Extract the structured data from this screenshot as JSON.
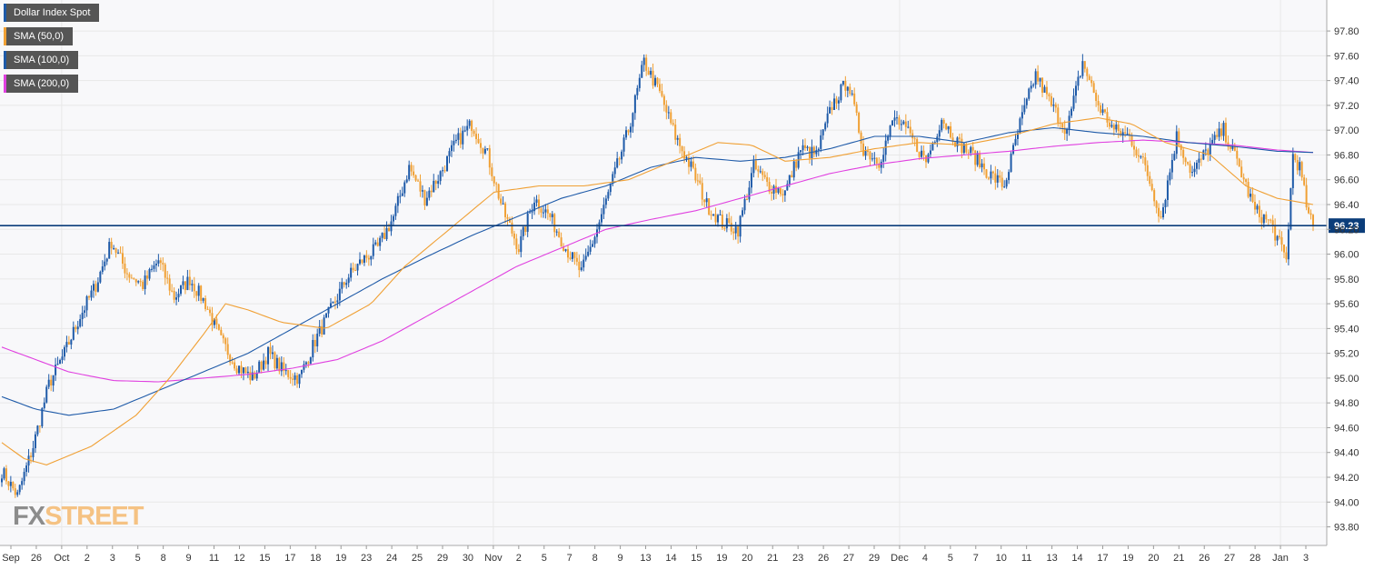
{
  "colors": {
    "up": "#1e5aa8",
    "down": "#f0a034",
    "sma50": "#f0a034",
    "sma100": "#1e5aa8",
    "sma200": "#e040e0",
    "last_line": "#0b3d7a",
    "grid": "#e8e8e8",
    "plot_bg": "#f8f8fa"
  },
  "legend": [
    {
      "label": "Dollar Index Spot",
      "color": "#1e5aa8"
    },
    {
      "label": "SMA (50,0)",
      "color": "#f0a034"
    },
    {
      "label": "SMA (100,0)",
      "color": "#1e5aa8"
    },
    {
      "label": "SMA (200,0)",
      "color": "#e040e0"
    }
  ],
  "watermark": {
    "part1": "FX",
    "part2": "STREET"
  },
  "chart_data": {
    "type": "candlestick",
    "title": "",
    "xlabel": "",
    "ylabel": "",
    "ylim": [
      93.65,
      98.05
    ],
    "y_ticks": [
      "93.80",
      "94.00",
      "94.20",
      "94.40",
      "94.60",
      "94.80",
      "95.00",
      "95.20",
      "95.40",
      "95.60",
      "95.80",
      "96.00",
      "96.20",
      "96.40",
      "96.60",
      "96.80",
      "97.00",
      "97.20",
      "97.40",
      "97.60",
      "97.80"
    ],
    "x_ticks": [
      "Sep",
      "26",
      "Oct",
      "2",
      "3",
      "5",
      "8",
      "9",
      "11",
      "12",
      "15",
      "17",
      "18",
      "19",
      "23",
      "24",
      "25",
      "29",
      "30",
      "Nov",
      "2",
      "5",
      "7",
      "8",
      "9",
      "13",
      "14",
      "15",
      "19",
      "20",
      "21",
      "23",
      "26",
      "27",
      "29",
      "Dec",
      "4",
      "5",
      "7",
      "10",
      "11",
      "13",
      "14",
      "17",
      "19",
      "20",
      "21",
      "26",
      "27",
      "28",
      "Jan",
      "3"
    ],
    "last_price": 96.23,
    "last_price_label": "96.23",
    "grid": true,
    "legend_position": "top-left",
    "anchors": [
      [
        0,
        94.25
      ],
      [
        7,
        94.05
      ],
      [
        14,
        94.45
      ],
      [
        21,
        94.95
      ],
      [
        28,
        95.2
      ],
      [
        35,
        95.5
      ],
      [
        42,
        95.75
      ],
      [
        49,
        96.1
      ],
      [
        56,
        95.85
      ],
      [
        63,
        95.75
      ],
      [
        70,
        95.95
      ],
      [
        77,
        95.65
      ],
      [
        84,
        95.8
      ],
      [
        91,
        95.6
      ],
      [
        98,
        95.3
      ],
      [
        105,
        95.1
      ],
      [
        112,
        95.0
      ],
      [
        119,
        95.2
      ],
      [
        126,
        95.05
      ],
      [
        133,
        95.0
      ],
      [
        140,
        95.3
      ],
      [
        147,
        95.55
      ],
      [
        154,
        95.8
      ],
      [
        161,
        95.95
      ],
      [
        168,
        96.05
      ],
      [
        175,
        96.3
      ],
      [
        182,
        96.7
      ],
      [
        189,
        96.45
      ],
      [
        196,
        96.65
      ],
      [
        203,
        96.9
      ],
      [
        210,
        97.05
      ],
      [
        217,
        96.8
      ],
      [
        224,
        96.35
      ],
      [
        231,
        96.05
      ],
      [
        238,
        96.45
      ],
      [
        245,
        96.3
      ],
      [
        252,
        96.05
      ],
      [
        259,
        95.85
      ],
      [
        266,
        96.2
      ],
      [
        273,
        96.6
      ],
      [
        280,
        97.0
      ],
      [
        287,
        97.55
      ],
      [
        294,
        97.3
      ],
      [
        301,
        96.95
      ],
      [
        308,
        96.7
      ],
      [
        315,
        96.4
      ],
      [
        322,
        96.25
      ],
      [
        329,
        96.2
      ],
      [
        336,
        96.7
      ],
      [
        343,
        96.55
      ],
      [
        350,
        96.5
      ],
      [
        357,
        96.85
      ],
      [
        364,
        96.8
      ],
      [
        371,
        97.2
      ],
      [
        378,
        97.4
      ],
      [
        385,
        96.85
      ],
      [
        392,
        96.75
      ],
      [
        399,
        97.1
      ],
      [
        406,
        96.95
      ],
      [
        413,
        96.75
      ],
      [
        420,
        97.1
      ],
      [
        427,
        96.9
      ],
      [
        434,
        96.8
      ],
      [
        441,
        96.65
      ],
      [
        448,
        96.55
      ],
      [
        455,
        97.05
      ],
      [
        462,
        97.45
      ],
      [
        469,
        97.2
      ],
      [
        476,
        97.0
      ],
      [
        483,
        97.55
      ],
      [
        490,
        97.2
      ],
      [
        497,
        97.0
      ],
      [
        504,
        96.95
      ],
      [
        511,
        96.7
      ],
      [
        518,
        96.3
      ],
      [
        525,
        96.95
      ],
      [
        532,
        96.65
      ],
      [
        539,
        96.85
      ],
      [
        546,
        97.0
      ],
      [
        553,
        96.7
      ],
      [
        560,
        96.35
      ],
      [
        567,
        96.25
      ],
      [
        574,
        95.95
      ],
      [
        577,
        96.8
      ],
      [
        580,
        96.7
      ],
      [
        584,
        96.3
      ],
      [
        586,
        96.23
      ]
    ],
    "sma50": [
      [
        0,
        94.48
      ],
      [
        10,
        94.35
      ],
      [
        20,
        94.3
      ],
      [
        40,
        94.45
      ],
      [
        60,
        94.7
      ],
      [
        75,
        95.0
      ],
      [
        90,
        95.35
      ],
      [
        100,
        95.6
      ],
      [
        110,
        95.55
      ],
      [
        125,
        95.45
      ],
      [
        145,
        95.4
      ],
      [
        165,
        95.6
      ],
      [
        180,
        95.9
      ],
      [
        200,
        96.2
      ],
      [
        220,
        96.5
      ],
      [
        240,
        96.55
      ],
      [
        260,
        96.55
      ],
      [
        280,
        96.6
      ],
      [
        300,
        96.75
      ],
      [
        320,
        96.9
      ],
      [
        335,
        96.88
      ],
      [
        350,
        96.75
      ],
      [
        370,
        96.78
      ],
      [
        390,
        96.85
      ],
      [
        410,
        96.9
      ],
      [
        430,
        96.88
      ],
      [
        450,
        96.95
      ],
      [
        470,
        97.05
      ],
      [
        490,
        97.1
      ],
      [
        505,
        97.05
      ],
      [
        520,
        96.9
      ],
      [
        540,
        96.8
      ],
      [
        556,
        96.55
      ],
      [
        570,
        96.45
      ],
      [
        586,
        96.4
      ]
    ],
    "sma100": [
      [
        0,
        94.85
      ],
      [
        15,
        94.75
      ],
      [
        30,
        94.7
      ],
      [
        50,
        94.75
      ],
      [
        70,
        94.9
      ],
      [
        90,
        95.05
      ],
      [
        110,
        95.2
      ],
      [
        130,
        95.4
      ],
      [
        150,
        95.6
      ],
      [
        170,
        95.8
      ],
      [
        190,
        95.98
      ],
      [
        210,
        96.15
      ],
      [
        230,
        96.3
      ],
      [
        250,
        96.45
      ],
      [
        270,
        96.55
      ],
      [
        290,
        96.7
      ],
      [
        310,
        96.78
      ],
      [
        330,
        96.75
      ],
      [
        350,
        96.78
      ],
      [
        370,
        96.85
      ],
      [
        390,
        96.95
      ],
      [
        410,
        96.95
      ],
      [
        430,
        96.9
      ],
      [
        450,
        96.98
      ],
      [
        470,
        97.02
      ],
      [
        490,
        96.98
      ],
      [
        510,
        96.95
      ],
      [
        530,
        96.9
      ],
      [
        550,
        96.87
      ],
      [
        570,
        96.83
      ],
      [
        586,
        96.82
      ]
    ],
    "sma200": [
      [
        0,
        95.25
      ],
      [
        15,
        95.15
      ],
      [
        30,
        95.05
      ],
      [
        50,
        94.98
      ],
      [
        70,
        94.97
      ],
      [
        90,
        95.0
      ],
      [
        110,
        95.03
      ],
      [
        130,
        95.08
      ],
      [
        150,
        95.15
      ],
      [
        170,
        95.3
      ],
      [
        190,
        95.5
      ],
      [
        210,
        95.7
      ],
      [
        230,
        95.9
      ],
      [
        250,
        96.05
      ],
      [
        270,
        96.2
      ],
      [
        290,
        96.28
      ],
      [
        310,
        96.35
      ],
      [
        330,
        96.45
      ],
      [
        350,
        96.55
      ],
      [
        370,
        96.65
      ],
      [
        390,
        96.72
      ],
      [
        410,
        96.77
      ],
      [
        430,
        96.8
      ],
      [
        450,
        96.83
      ],
      [
        470,
        96.87
      ],
      [
        490,
        96.9
      ],
      [
        510,
        96.92
      ],
      [
        530,
        96.9
      ],
      [
        550,
        96.88
      ],
      [
        570,
        96.84
      ],
      [
        586,
        96.82
      ]
    ]
  }
}
